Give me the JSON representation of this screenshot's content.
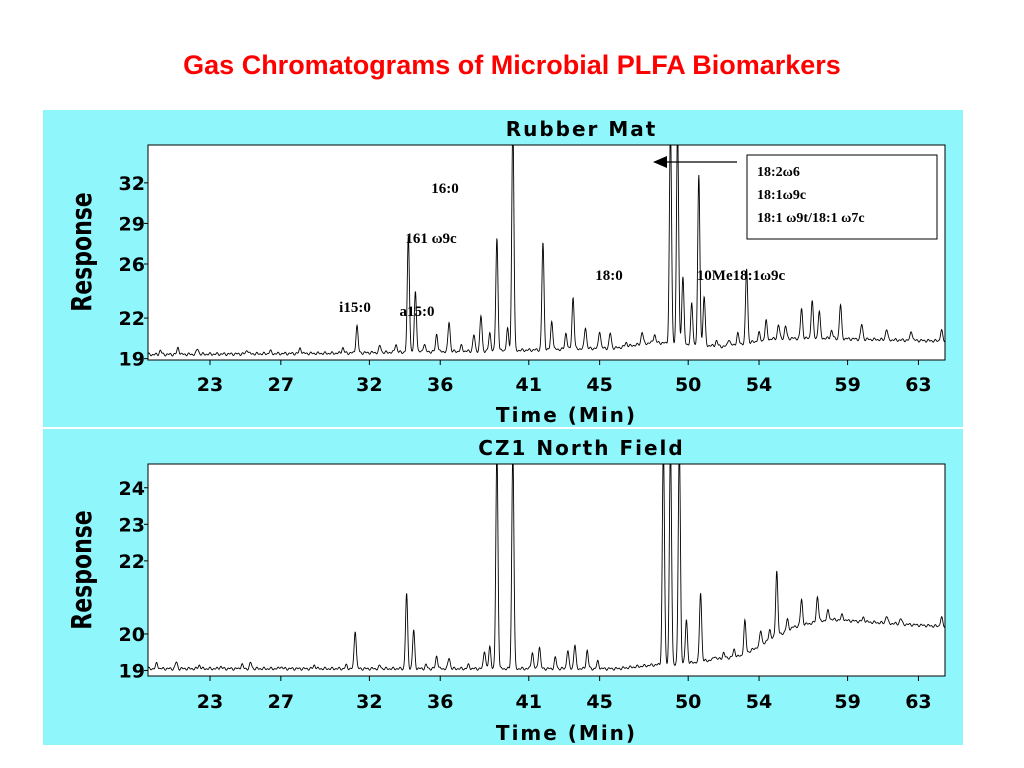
{
  "slide": {
    "title": "Gas Chromatograms of Microbial PLFA Biomarkers"
  },
  "colors": {
    "title": "#ff0000",
    "panel": "#8ff7fc",
    "plot": "#ffffff",
    "trace": "#000000"
  },
  "chart_data": [
    {
      "type": "line",
      "title": "Rubber Mat",
      "xlabel": "Time (Min)",
      "ylabel": "Response",
      "xlim": [
        19.5,
        64.5
      ],
      "ylim": [
        18.9,
        34.8
      ],
      "x_ticks": [
        "23",
        "27",
        "32",
        "36",
        "41",
        "45",
        "50",
        "54",
        "59",
        "63"
      ],
      "y_ticks": [
        "19",
        "22",
        "26",
        "29",
        "32"
      ],
      "baseline": [
        [
          19.5,
          19.3
        ],
        [
          30,
          19.4
        ],
        [
          40,
          19.6
        ],
        [
          46,
          19.8
        ],
        [
          48,
          20.2
        ],
        [
          52,
          19.9
        ],
        [
          55,
          20.5
        ],
        [
          58,
          20.5
        ],
        [
          61,
          20.4
        ],
        [
          64.5,
          20.3
        ]
      ],
      "peaks": [
        [
          20.2,
          0.3
        ],
        [
          21.2,
          0.5
        ],
        [
          22.3,
          0.4
        ],
        [
          25.1,
          0.3
        ],
        [
          26.4,
          0.2
        ],
        [
          28.1,
          0.4
        ],
        [
          30.5,
          0.4
        ],
        [
          31.3,
          2.0
        ],
        [
          32.6,
          0.5
        ],
        [
          33.5,
          0.6
        ],
        [
          34.2,
          8.6
        ],
        [
          34.6,
          4.5
        ],
        [
          35.1,
          0.6
        ],
        [
          35.8,
          1.3
        ],
        [
          36.5,
          2.2
        ],
        [
          37.2,
          0.4
        ],
        [
          37.9,
          1.2
        ],
        [
          38.3,
          2.6
        ],
        [
          38.8,
          1.3
        ],
        [
          39.2,
          8.3
        ],
        [
          39.8,
          1.6
        ],
        [
          40.1,
          17.0
        ],
        [
          41.8,
          7.9
        ],
        [
          42.3,
          2.1
        ],
        [
          43.1,
          1.2
        ],
        [
          43.5,
          3.8
        ],
        [
          44.2,
          1.6
        ],
        [
          45.0,
          1.3
        ],
        [
          45.6,
          1.1
        ],
        [
          46.5,
          0.3
        ],
        [
          47.4,
          0.9
        ],
        [
          48.1,
          0.6
        ],
        [
          49.0,
          16.0
        ],
        [
          49.4,
          16.0
        ],
        [
          49.7,
          5.0
        ],
        [
          50.2,
          3.0
        ],
        [
          50.6,
          12.5
        ],
        [
          50.9,
          3.6
        ],
        [
          51.6,
          0.4
        ],
        [
          52.3,
          0.5
        ],
        [
          52.8,
          0.8
        ],
        [
          53.3,
          5.5
        ],
        [
          54.0,
          0.6
        ],
        [
          54.4,
          1.4
        ],
        [
          55.1,
          1.0
        ],
        [
          55.5,
          0.9
        ],
        [
          56.4,
          2.2
        ],
        [
          57.0,
          2.8
        ],
        [
          57.4,
          2.0
        ],
        [
          58.1,
          0.6
        ],
        [
          58.6,
          2.5
        ],
        [
          59.8,
          1.1
        ],
        [
          61.2,
          0.8
        ],
        [
          62.6,
          0.7
        ],
        [
          64.3,
          0.8
        ]
      ],
      "annotations": [
        {
          "label": "i15:0",
          "x": 31.3
        },
        {
          "label": "a15:0",
          "x": 34.6
        },
        {
          "label": "161 ω9c",
          "x": 34.2
        },
        {
          "label": "16:0",
          "x": 40.1
        },
        {
          "label": "18:0",
          "x": 49.0
        },
        {
          "label": "10Me18:1ω9c",
          "x": 53.3
        }
      ],
      "legend": {
        "position": "top-right",
        "entries": [
          "18:2ω6",
          "18:1ω9c",
          "18:1 ω9t/18:1 ω7c"
        ]
      }
    },
    {
      "type": "line",
      "title": "CZ1 North Field",
      "xlabel": "Time (Min)",
      "ylabel": "Response",
      "xlim": [
        19.5,
        64.5
      ],
      "ylim": [
        18.85,
        24.65
      ],
      "x_ticks": [
        "23",
        "27",
        "32",
        "36",
        "41",
        "45",
        "50",
        "54",
        "59",
        "63"
      ],
      "y_ticks": [
        "19",
        "20",
        "22",
        "23",
        "24"
      ],
      "baseline": [
        [
          19.5,
          19.05
        ],
        [
          30,
          19.05
        ],
        [
          46,
          19.05
        ],
        [
          48,
          19.15
        ],
        [
          50,
          19.2
        ],
        [
          53,
          19.4
        ],
        [
          56,
          20.2
        ],
        [
          58,
          20.4
        ],
        [
          61,
          20.3
        ],
        [
          64.5,
          20.2
        ]
      ],
      "peaks": [
        [
          20.0,
          0.15
        ],
        [
          21.1,
          0.18
        ],
        [
          22.4,
          0.1
        ],
        [
          23.6,
          0.06
        ],
        [
          24.8,
          0.12
        ],
        [
          25.3,
          0.16
        ],
        [
          27.0,
          0.06
        ],
        [
          28.9,
          0.1
        ],
        [
          30.7,
          0.09
        ],
        [
          31.2,
          1.05
        ],
        [
          32.6,
          0.08
        ],
        [
          34.1,
          2.05
        ],
        [
          34.5,
          1.05
        ],
        [
          35.2,
          0.1
        ],
        [
          35.8,
          0.35
        ],
        [
          36.5,
          0.3
        ],
        [
          37.6,
          0.1
        ],
        [
          38.5,
          0.5
        ],
        [
          38.8,
          0.6
        ],
        [
          39.2,
          6.0
        ],
        [
          40.1,
          6.0
        ],
        [
          41.2,
          0.45
        ],
        [
          41.6,
          0.6
        ],
        [
          42.5,
          0.3
        ],
        [
          43.2,
          0.5
        ],
        [
          43.6,
          0.65
        ],
        [
          44.3,
          0.5
        ],
        [
          44.9,
          0.2
        ],
        [
          48.6,
          6.0
        ],
        [
          49.0,
          6.0
        ],
        [
          49.5,
          6.0
        ],
        [
          49.9,
          1.2
        ],
        [
          50.7,
          1.9
        ],
        [
          51.5,
          0.1
        ],
        [
          52.0,
          0.15
        ],
        [
          52.6,
          0.2
        ],
        [
          53.2,
          0.9
        ],
        [
          54.1,
          0.4
        ],
        [
          54.6,
          0.3
        ],
        [
          55.0,
          1.8
        ],
        [
          55.6,
          0.3
        ],
        [
          56.4,
          0.7
        ],
        [
          57.3,
          0.7
        ],
        [
          57.9,
          0.25
        ],
        [
          58.7,
          0.15
        ],
        [
          59.9,
          0.12
        ],
        [
          61.2,
          0.2
        ],
        [
          62.0,
          0.15
        ],
        [
          64.3,
          0.25
        ]
      ]
    }
  ]
}
